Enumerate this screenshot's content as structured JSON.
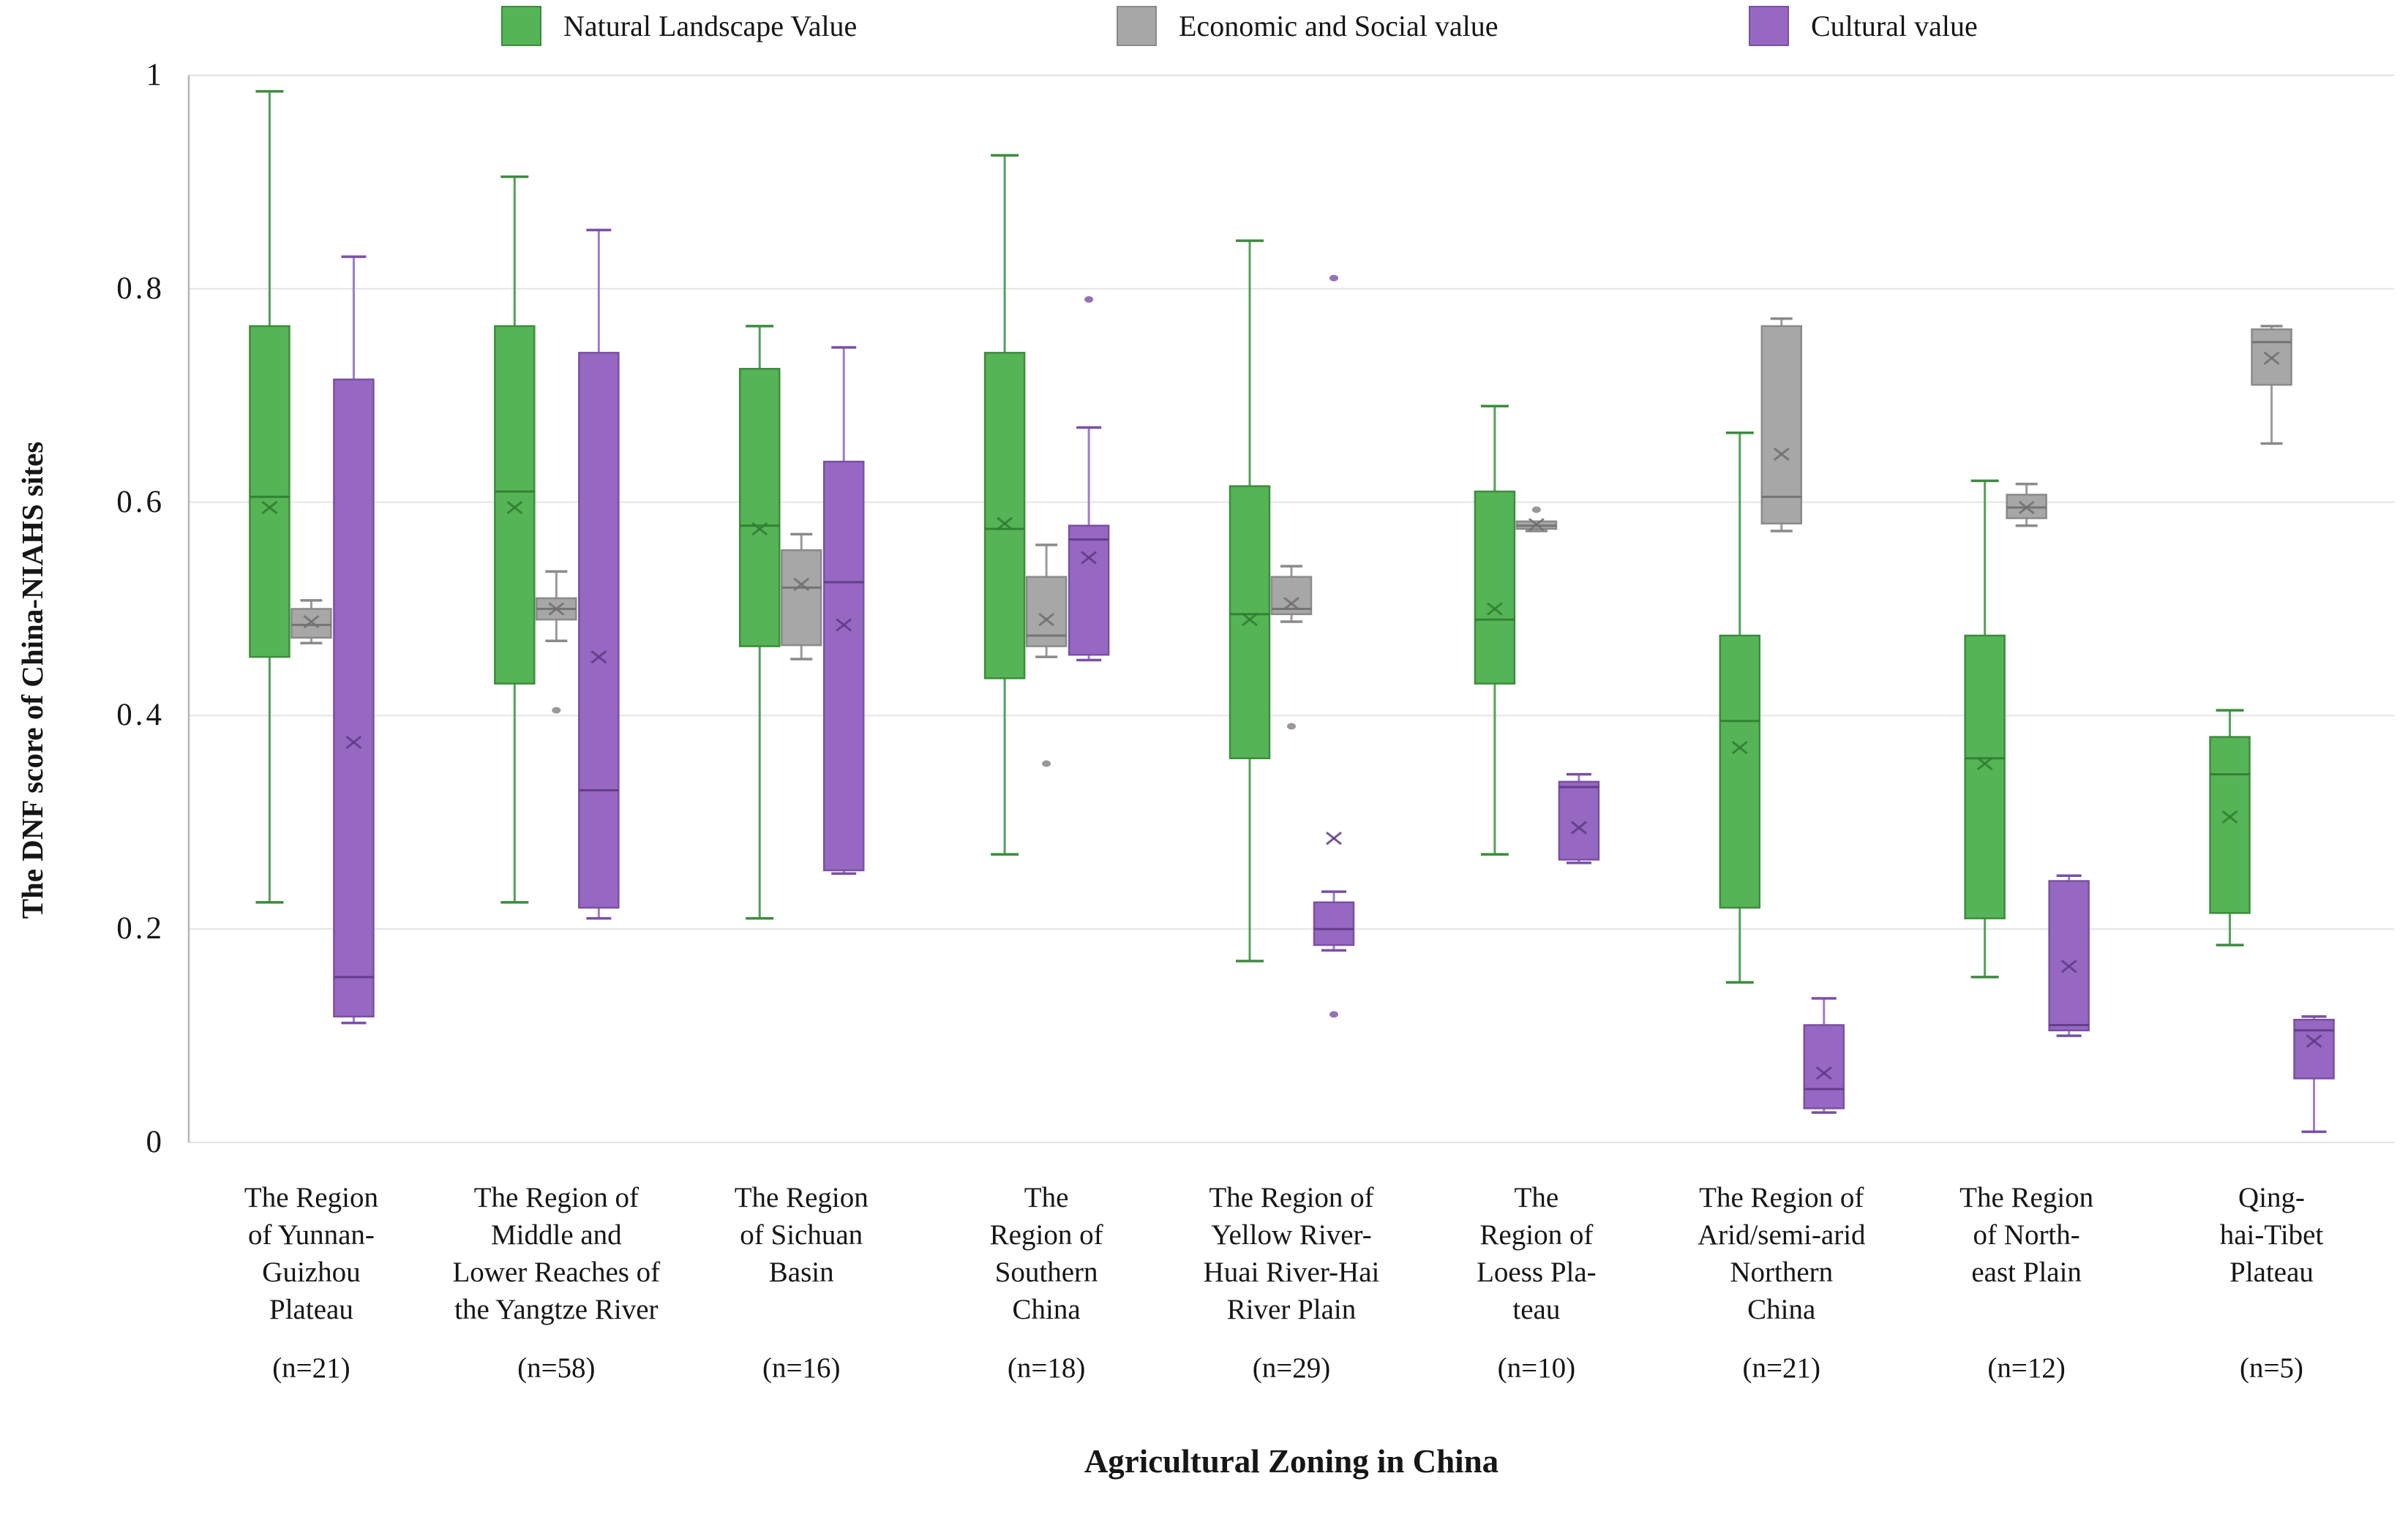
{
  "page": {
    "background": "#ffffff",
    "gridline_color": "#e4e4e4",
    "axis_line_color": "#b5b5b5"
  },
  "legend": {
    "items": [
      {
        "label": "Natural Landscape Value",
        "series": "natural"
      },
      {
        "label": "Economic and Social value",
        "series": "economic"
      },
      {
        "label": "Cultural value",
        "series": "cultural"
      }
    ]
  },
  "series_styles": {
    "natural": {
      "fill": "#55B455",
      "stroke": "#3C8C3C",
      "median": "#2F7D32",
      "whisker": "#55A058",
      "outlier": "#3C8C3C"
    },
    "economic": {
      "fill": "#A7A7A7",
      "stroke": "#8A8A8A",
      "median": "#6F6F6F",
      "whisker": "#9A9A9A",
      "outlier": "#7F7F7F"
    },
    "cultural": {
      "fill": "#9668C2",
      "stroke": "#7A4FA5",
      "median": "#5E3A85",
      "whisker": "#9E7CC8",
      "outlier": "#7A4FA5"
    }
  },
  "y_axis": {
    "title": "The DNF score of China-NIAHS sites",
    "ticks": [
      {
        "label": "1",
        "value": 1.0
      },
      {
        "label": "0.8",
        "value": 0.8
      },
      {
        "label": "0.6",
        "value": 0.6
      },
      {
        "label": "0.4",
        "value": 0.4
      },
      {
        "label": "0.2",
        "value": 0.2
      },
      {
        "label": "0",
        "value": 0.0
      }
    ]
  },
  "x_axis": {
    "title": "Agricultural Zoning in China"
  },
  "chart_data": {
    "type": "box",
    "ylabel": "The DNF score of China-NIAHS sites",
    "xlabel": "Agricultural Zoning in China",
    "ylim": [
      0,
      1
    ],
    "grid": true,
    "legend_position": "top",
    "series_names": [
      "Natural Landscape Value",
      "Economic and Social value",
      "Cultural value"
    ],
    "groups": [
      {
        "region_lines": [
          "The Region",
          "of Yunnan-",
          "Guizhou",
          "Plateau"
        ],
        "n_label": "(n=21)",
        "boxes": [
          {
            "series": "natural",
            "lo": 0.225,
            "q1": 0.455,
            "med": 0.605,
            "mean": 0.595,
            "q3": 0.765,
            "hi": 0.985,
            "outliers": []
          },
          {
            "series": "economic",
            "lo": 0.468,
            "q1": 0.473,
            "med": 0.485,
            "mean": 0.488,
            "q3": 0.5,
            "hi": 0.508,
            "outliers": []
          },
          {
            "series": "cultural",
            "lo": 0.112,
            "q1": 0.118,
            "med": 0.155,
            "mean": 0.375,
            "q3": 0.715,
            "hi": 0.83,
            "outliers": []
          }
        ]
      },
      {
        "region_lines": [
          "The Region of",
          "Middle and",
          "Lower Reaches of",
          "the Yangtze River"
        ],
        "n_label": "(n=58)",
        "boxes": [
          {
            "series": "natural",
            "lo": 0.225,
            "q1": 0.43,
            "med": 0.61,
            "mean": 0.595,
            "q3": 0.765,
            "hi": 0.905,
            "outliers": []
          },
          {
            "series": "economic",
            "lo": 0.47,
            "q1": 0.49,
            "med": 0.5,
            "mean": 0.5,
            "q3": 0.51,
            "hi": 0.535,
            "outliers": [
              0.405
            ]
          },
          {
            "series": "cultural",
            "lo": 0.21,
            "q1": 0.22,
            "med": 0.33,
            "mean": 0.455,
            "q3": 0.74,
            "hi": 0.855,
            "outliers": []
          }
        ]
      },
      {
        "region_lines": [
          "The Region",
          "of Sichuan",
          "Basin"
        ],
        "n_label": "(n=16)",
        "boxes": [
          {
            "series": "natural",
            "lo": 0.21,
            "q1": 0.465,
            "med": 0.578,
            "mean": 0.575,
            "q3": 0.725,
            "hi": 0.765,
            "outliers": []
          },
          {
            "series": "economic",
            "lo": 0.453,
            "q1": 0.466,
            "med": 0.52,
            "mean": 0.523,
            "q3": 0.555,
            "hi": 0.57,
            "outliers": []
          },
          {
            "series": "cultural",
            "lo": 0.252,
            "q1": 0.255,
            "med": 0.525,
            "mean": 0.485,
            "q3": 0.638,
            "hi": 0.745,
            "outliers": []
          }
        ]
      },
      {
        "region_lines": [
          "The",
          "Region of",
          "Southern",
          "China"
        ],
        "n_label": "(n=18)",
        "boxes": [
          {
            "series": "natural",
            "lo": 0.27,
            "q1": 0.435,
            "med": 0.575,
            "mean": 0.58,
            "q3": 0.74,
            "hi": 0.925,
            "outliers": []
          },
          {
            "series": "economic",
            "lo": 0.455,
            "q1": 0.465,
            "med": 0.475,
            "mean": 0.49,
            "q3": 0.53,
            "hi": 0.56,
            "outliers": [
              0.355
            ]
          },
          {
            "series": "cultural",
            "lo": 0.452,
            "q1": 0.457,
            "med": 0.565,
            "mean": 0.548,
            "q3": 0.578,
            "hi": 0.67,
            "outliers": [
              0.79
            ]
          }
        ]
      },
      {
        "region_lines": [
          "The Region of",
          "Yellow River-",
          "Huai River-Hai",
          "River Plain"
        ],
        "n_label": "(n=29)",
        "boxes": [
          {
            "series": "natural",
            "lo": 0.17,
            "q1": 0.36,
            "med": 0.495,
            "mean": 0.49,
            "q3": 0.615,
            "hi": 0.845,
            "outliers": []
          },
          {
            "series": "economic",
            "lo": 0.488,
            "q1": 0.495,
            "med": 0.5,
            "mean": 0.505,
            "q3": 0.53,
            "hi": 0.54,
            "outliers": [
              0.39
            ]
          },
          {
            "series": "cultural",
            "lo": 0.18,
            "q1": 0.185,
            "med": 0.2,
            "mean": 0.285,
            "q3": 0.225,
            "hi": 0.235,
            "outliers": [
              0.81,
              0.12
            ]
          }
        ]
      },
      {
        "region_lines": [
          "The",
          "Region of",
          "Loess Pla-",
          "teau"
        ],
        "n_label": "(n=10)",
        "boxes": [
          {
            "series": "natural",
            "lo": 0.27,
            "q1": 0.43,
            "med": 0.49,
            "mean": 0.5,
            "q3": 0.61,
            "hi": 0.69,
            "outliers": []
          },
          {
            "series": "economic",
            "lo": 0.573,
            "q1": 0.575,
            "med": 0.578,
            "mean": 0.579,
            "q3": 0.582,
            "hi": 0.583,
            "outliers": [
              0.593
            ]
          },
          {
            "series": "cultural",
            "lo": 0.262,
            "q1": 0.265,
            "med": 0.333,
            "mean": 0.295,
            "q3": 0.338,
            "hi": 0.345,
            "outliers": []
          }
        ]
      },
      {
        "region_lines": [
          "The Region of",
          "Arid/semi-arid",
          "Northern",
          "China"
        ],
        "n_label": "(n=21)",
        "boxes": [
          {
            "series": "natural",
            "lo": 0.15,
            "q1": 0.22,
            "med": 0.395,
            "mean": 0.37,
            "q3": 0.475,
            "hi": 0.665,
            "outliers": []
          },
          {
            "series": "economic",
            "lo": 0.573,
            "q1": 0.58,
            "med": 0.605,
            "mean": 0.645,
            "q3": 0.765,
            "hi": 0.772,
            "outliers": []
          },
          {
            "series": "cultural",
            "lo": 0.028,
            "q1": 0.032,
            "med": 0.05,
            "mean": 0.065,
            "q3": 0.11,
            "hi": 0.135,
            "outliers": []
          }
        ]
      },
      {
        "region_lines": [
          "The Region",
          "of North-",
          "east Plain"
        ],
        "n_label": "(n=12)",
        "boxes": [
          {
            "series": "natural",
            "lo": 0.155,
            "q1": 0.21,
            "med": 0.36,
            "mean": 0.355,
            "q3": 0.475,
            "hi": 0.62,
            "outliers": []
          },
          {
            "series": "economic",
            "lo": 0.578,
            "q1": 0.585,
            "med": 0.595,
            "mean": 0.595,
            "q3": 0.607,
            "hi": 0.617,
            "outliers": []
          },
          {
            "series": "cultural",
            "lo": 0.1,
            "q1": 0.105,
            "med": 0.11,
            "mean": 0.165,
            "q3": 0.245,
            "hi": 0.25,
            "outliers": []
          }
        ]
      },
      {
        "region_lines": [
          "Qing-",
          "hai-Tibet",
          "Plateau"
        ],
        "n_label": "(n=5)",
        "boxes": [
          {
            "series": "natural",
            "lo": 0.185,
            "q1": 0.215,
            "med": 0.345,
            "mean": 0.305,
            "q3": 0.38,
            "hi": 0.405,
            "outliers": []
          },
          {
            "series": "economic",
            "lo": 0.655,
            "q1": 0.71,
            "med": 0.75,
            "mean": 0.735,
            "q3": 0.762,
            "hi": 0.765,
            "outliers": []
          },
          {
            "series": "cultural",
            "lo": 0.01,
            "q1": 0.06,
            "med": 0.105,
            "mean": 0.095,
            "q3": 0.115,
            "hi": 0.118,
            "outliers": []
          }
        ]
      }
    ]
  }
}
